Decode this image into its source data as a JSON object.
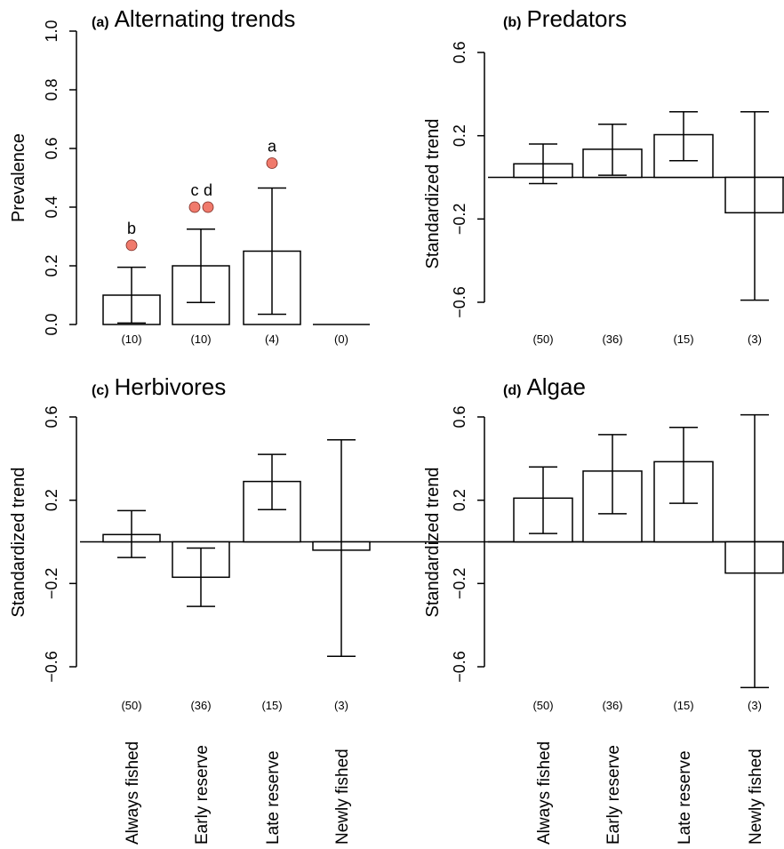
{
  "colors": {
    "marker": "#f07a6c",
    "axis": "#000000",
    "bar_fill": "#ffffff"
  },
  "chart_data": [
    {
      "panel": "a",
      "type": "bar",
      "title_letter": "(a)",
      "title": "Alternating trends",
      "ylabel": "Prevalence",
      "ylim": [
        0,
        1
      ],
      "yticks": [
        "0.0",
        "0.2",
        "0.4",
        "0.6",
        "0.8",
        "1.0"
      ],
      "counts": [
        "(10)",
        "(10)",
        "(4)",
        "(0)"
      ],
      "values": [
        0.1,
        0.2,
        0.25,
        0.0
      ],
      "err_low": [
        0.005,
        0.075,
        0.035,
        null
      ],
      "err_high": [
        0.195,
        0.325,
        0.465,
        null
      ],
      "points": [
        {
          "x_index": 0,
          "y": 0.27,
          "label": "b"
        },
        {
          "x_index": 1,
          "y": 0.4,
          "label": "c"
        },
        {
          "x_index": 1,
          "y": 0.4,
          "label": "d"
        },
        {
          "x_index": 2,
          "y": 0.55,
          "label": "a"
        }
      ]
    },
    {
      "panel": "b",
      "type": "bar",
      "title_letter": "(b)",
      "title": "Predators",
      "ylabel": "Standardized trend",
      "ylim": [
        -0.6,
        0.6
      ],
      "yticks": [
        "−0.6",
        "−0.2",
        "0.2",
        "0.6"
      ],
      "counts": [
        "(50)",
        "(36)",
        "(15)",
        "(3)"
      ],
      "values": [
        0.065,
        0.135,
        0.205,
        -0.17
      ],
      "err_low": [
        -0.03,
        0.01,
        0.08,
        -0.59
      ],
      "err_high": [
        0.16,
        0.255,
        0.315,
        0.315
      ]
    },
    {
      "panel": "c",
      "type": "bar",
      "title_letter": "(c)",
      "title": "Herbivores",
      "ylabel": "Standardized trend",
      "ylim": [
        -0.6,
        0.6
      ],
      "yticks": [
        "−0.6",
        "−0.2",
        "0.2",
        "0.6"
      ],
      "counts": [
        "(50)",
        "(36)",
        "(15)",
        "(3)"
      ],
      "values": [
        0.035,
        -0.17,
        0.29,
        -0.04
      ],
      "err_low": [
        -0.075,
        -0.31,
        0.155,
        -0.55
      ],
      "err_high": [
        0.15,
        -0.03,
        0.42,
        0.49
      ]
    },
    {
      "panel": "d",
      "type": "bar",
      "title_letter": "(d)",
      "title": "Algae",
      "ylabel": "Standardized trend",
      "ylim": [
        -0.6,
        0.6
      ],
      "yticks": [
        "−0.6",
        "−0.2",
        "0.2",
        "0.6"
      ],
      "counts": [
        "(50)",
        "(36)",
        "(15)",
        "(3)"
      ],
      "values": [
        0.21,
        0.34,
        0.385,
        -0.15
      ],
      "err_low": [
        0.04,
        0.135,
        0.185,
        -0.7
      ],
      "err_high": [
        0.36,
        0.515,
        0.55,
        0.61
      ]
    }
  ],
  "categories": [
    "Always fished",
    "Early reserve",
    "Late reserve",
    "Newly fished"
  ]
}
